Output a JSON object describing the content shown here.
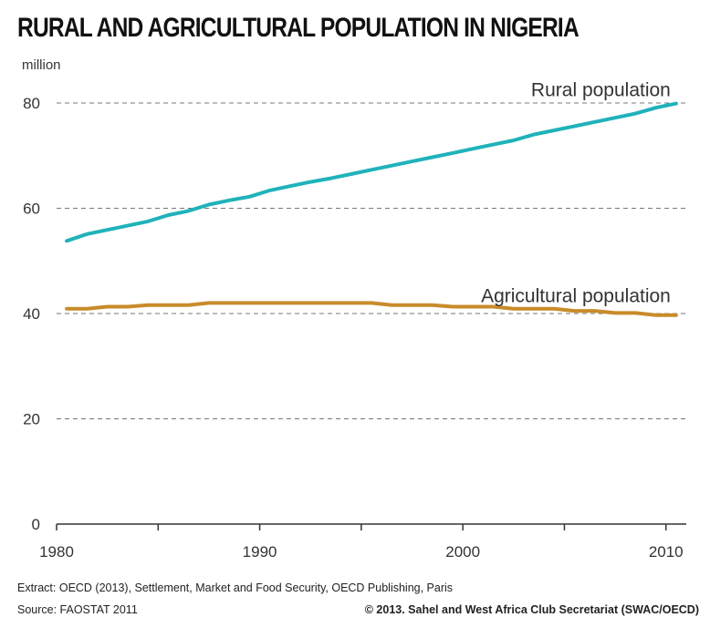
{
  "chart_data": {
    "type": "line",
    "title": "RURAL AND AGRICULTURAL POPULATION IN NIGERIA",
    "ylabel": "million",
    "xlabel": "",
    "ylim": [
      0,
      80
    ],
    "xlim": [
      1980,
      2011
    ],
    "y_ticks": [
      0,
      20,
      40,
      60,
      80
    ],
    "x_ticks": [
      1980,
      1990,
      2000,
      2010
    ],
    "grid": "horizontal dashed",
    "x": [
      1980.5,
      1981.5,
      1982.5,
      1983.5,
      1984.5,
      1985.5,
      1986.5,
      1987.5,
      1988.5,
      1989.5,
      1990.5,
      1991.5,
      1992.5,
      1993.5,
      1994.5,
      1995.5,
      1996.5,
      1997.5,
      1998.5,
      1999.5,
      2000.5,
      2001.5,
      2002.5,
      2003.5,
      2004.5,
      2005.5,
      2006.5,
      2007.5,
      2008.5,
      2009.5,
      2010.5
    ],
    "series": [
      {
        "name": "Rural population",
        "color": "#20b2ba",
        "values": [
          53.8,
          55.1,
          55.9,
          56.7,
          57.5,
          58.7,
          59.5,
          60.7,
          61.5,
          62.2,
          63.4,
          64.2,
          65.0,
          65.7,
          66.5,
          67.3,
          68.1,
          68.9,
          69.7,
          70.5,
          71.3,
          72.1,
          72.9,
          74.0,
          74.8,
          75.6,
          76.4,
          77.2,
          78.0,
          79.1,
          79.9
        ]
      },
      {
        "name": "Agricultural population",
        "color": "#c98b2a",
        "values": [
          40.9,
          40.9,
          41.3,
          41.3,
          41.6,
          41.6,
          41.6,
          42.0,
          42.0,
          42.0,
          42.0,
          42.0,
          42.0,
          42.0,
          42.0,
          42.0,
          41.6,
          41.6,
          41.6,
          41.3,
          41.3,
          41.3,
          40.9,
          40.9,
          40.9,
          40.5,
          40.5,
          40.1,
          40.1,
          39.7,
          39.7
        ]
      }
    ]
  },
  "footer": {
    "extract": "Extract: OECD (2013), Settlement, Market and Food Security, OECD Publishing, Paris",
    "source": "Source: FAOSTAT 2011",
    "copyright": "© 2013. Sahel and West Africa Club Secretariat (SWAC/OECD)"
  }
}
